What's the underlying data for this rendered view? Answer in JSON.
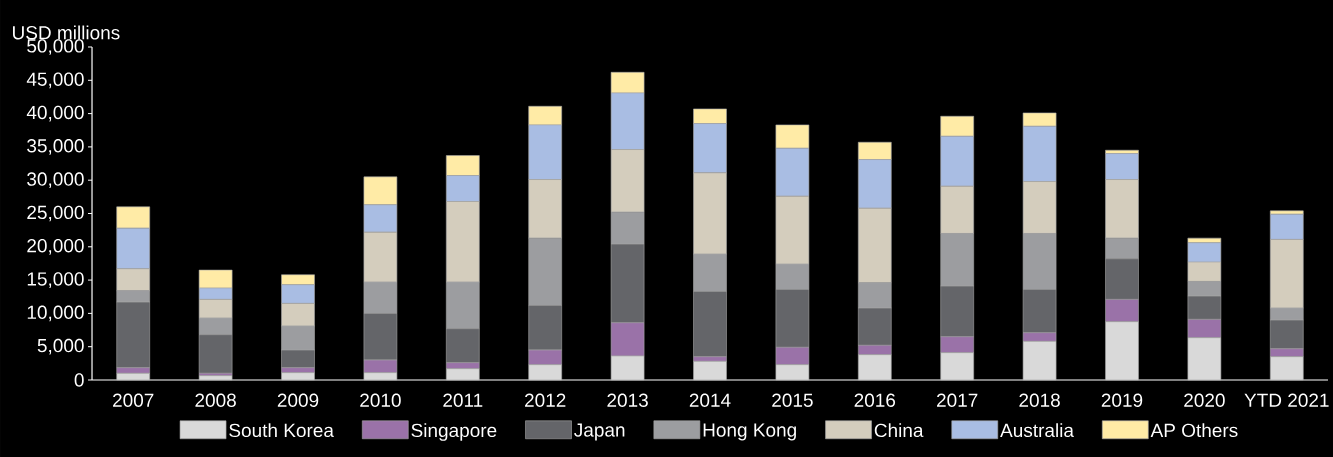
{
  "chart_data": {
    "type": "bar",
    "stacked": true,
    "ylabel": "USD millions",
    "categories": [
      "2007",
      "2008",
      "2009",
      "2010",
      "2011",
      "2012",
      "2013",
      "2014",
      "2015",
      "2016",
      "2017",
      "2018",
      "2019",
      "2020",
      "YTD 2021"
    ],
    "ylim": [
      0,
      50000
    ],
    "yticks": [
      0,
      {
        "value": 5000,
        "label": "5,000"
      },
      {
        "value": 10000,
        "label": "10,000"
      },
      {
        "value": 15000,
        "label": "15,000"
      },
      {
        "value": 20000,
        "label": "20,000"
      },
      {
        "value": 25000,
        "label": "25,000"
      },
      {
        "value": 30000,
        "label": "30,000"
      },
      {
        "value": 35000,
        "label": "35,000"
      },
      {
        "value": 40000,
        "label": "40,000"
      },
      {
        "value": 45000,
        "label": "45,000"
      },
      {
        "value": 50000,
        "label": "50,000"
      }
    ],
    "grid": false,
    "legend": "bottom",
    "series": [
      {
        "name": "South Korea",
        "color": "#d9d9d9",
        "values": [
          1000,
          650,
          1100,
          1100,
          1700,
          2300,
          3600,
          2800,
          2300,
          3800,
          4100,
          5800,
          8750,
          6350,
          3500
        ]
      },
      {
        "name": "Singapore",
        "color": "#9a72a8",
        "values": [
          850,
          350,
          750,
          1900,
          900,
          2200,
          5000,
          700,
          2600,
          1400,
          2400,
          1300,
          3350,
          2750,
          1200
        ]
      },
      {
        "name": "Japan",
        "color": "#646569",
        "values": [
          9850,
          5800,
          2650,
          7000,
          5100,
          6700,
          11800,
          9800,
          8700,
          5600,
          7600,
          6500,
          6100,
          3500,
          4300
        ]
      },
      {
        "name": "Hong Kong",
        "color": "#9c9da0",
        "values": [
          1700,
          2500,
          3600,
          4700,
          7000,
          10100,
          4800,
          5600,
          3800,
          3800,
          7900,
          8400,
          3100,
          2200,
          1800
        ]
      },
      {
        "name": "China",
        "color": "#d4cdbd",
        "values": [
          3300,
          2800,
          3400,
          7500,
          12100,
          8800,
          9400,
          12200,
          10200,
          11200,
          7100,
          7800,
          8800,
          2900,
          10300
        ]
      },
      {
        "name": "Australia",
        "color": "#a9bde3",
        "values": [
          6100,
          1700,
          2800,
          4100,
          3900,
          8200,
          8500,
          7400,
          7200,
          7300,
          7500,
          8300,
          3900,
          2900,
          3800
        ]
      },
      {
        "name": "AP Others",
        "color": "#ffeba6",
        "values": [
          3200,
          2700,
          1500,
          4200,
          3000,
          2800,
          3100,
          2200,
          3500,
          2600,
          3000,
          2000,
          500,
          700,
          500
        ]
      }
    ]
  }
}
